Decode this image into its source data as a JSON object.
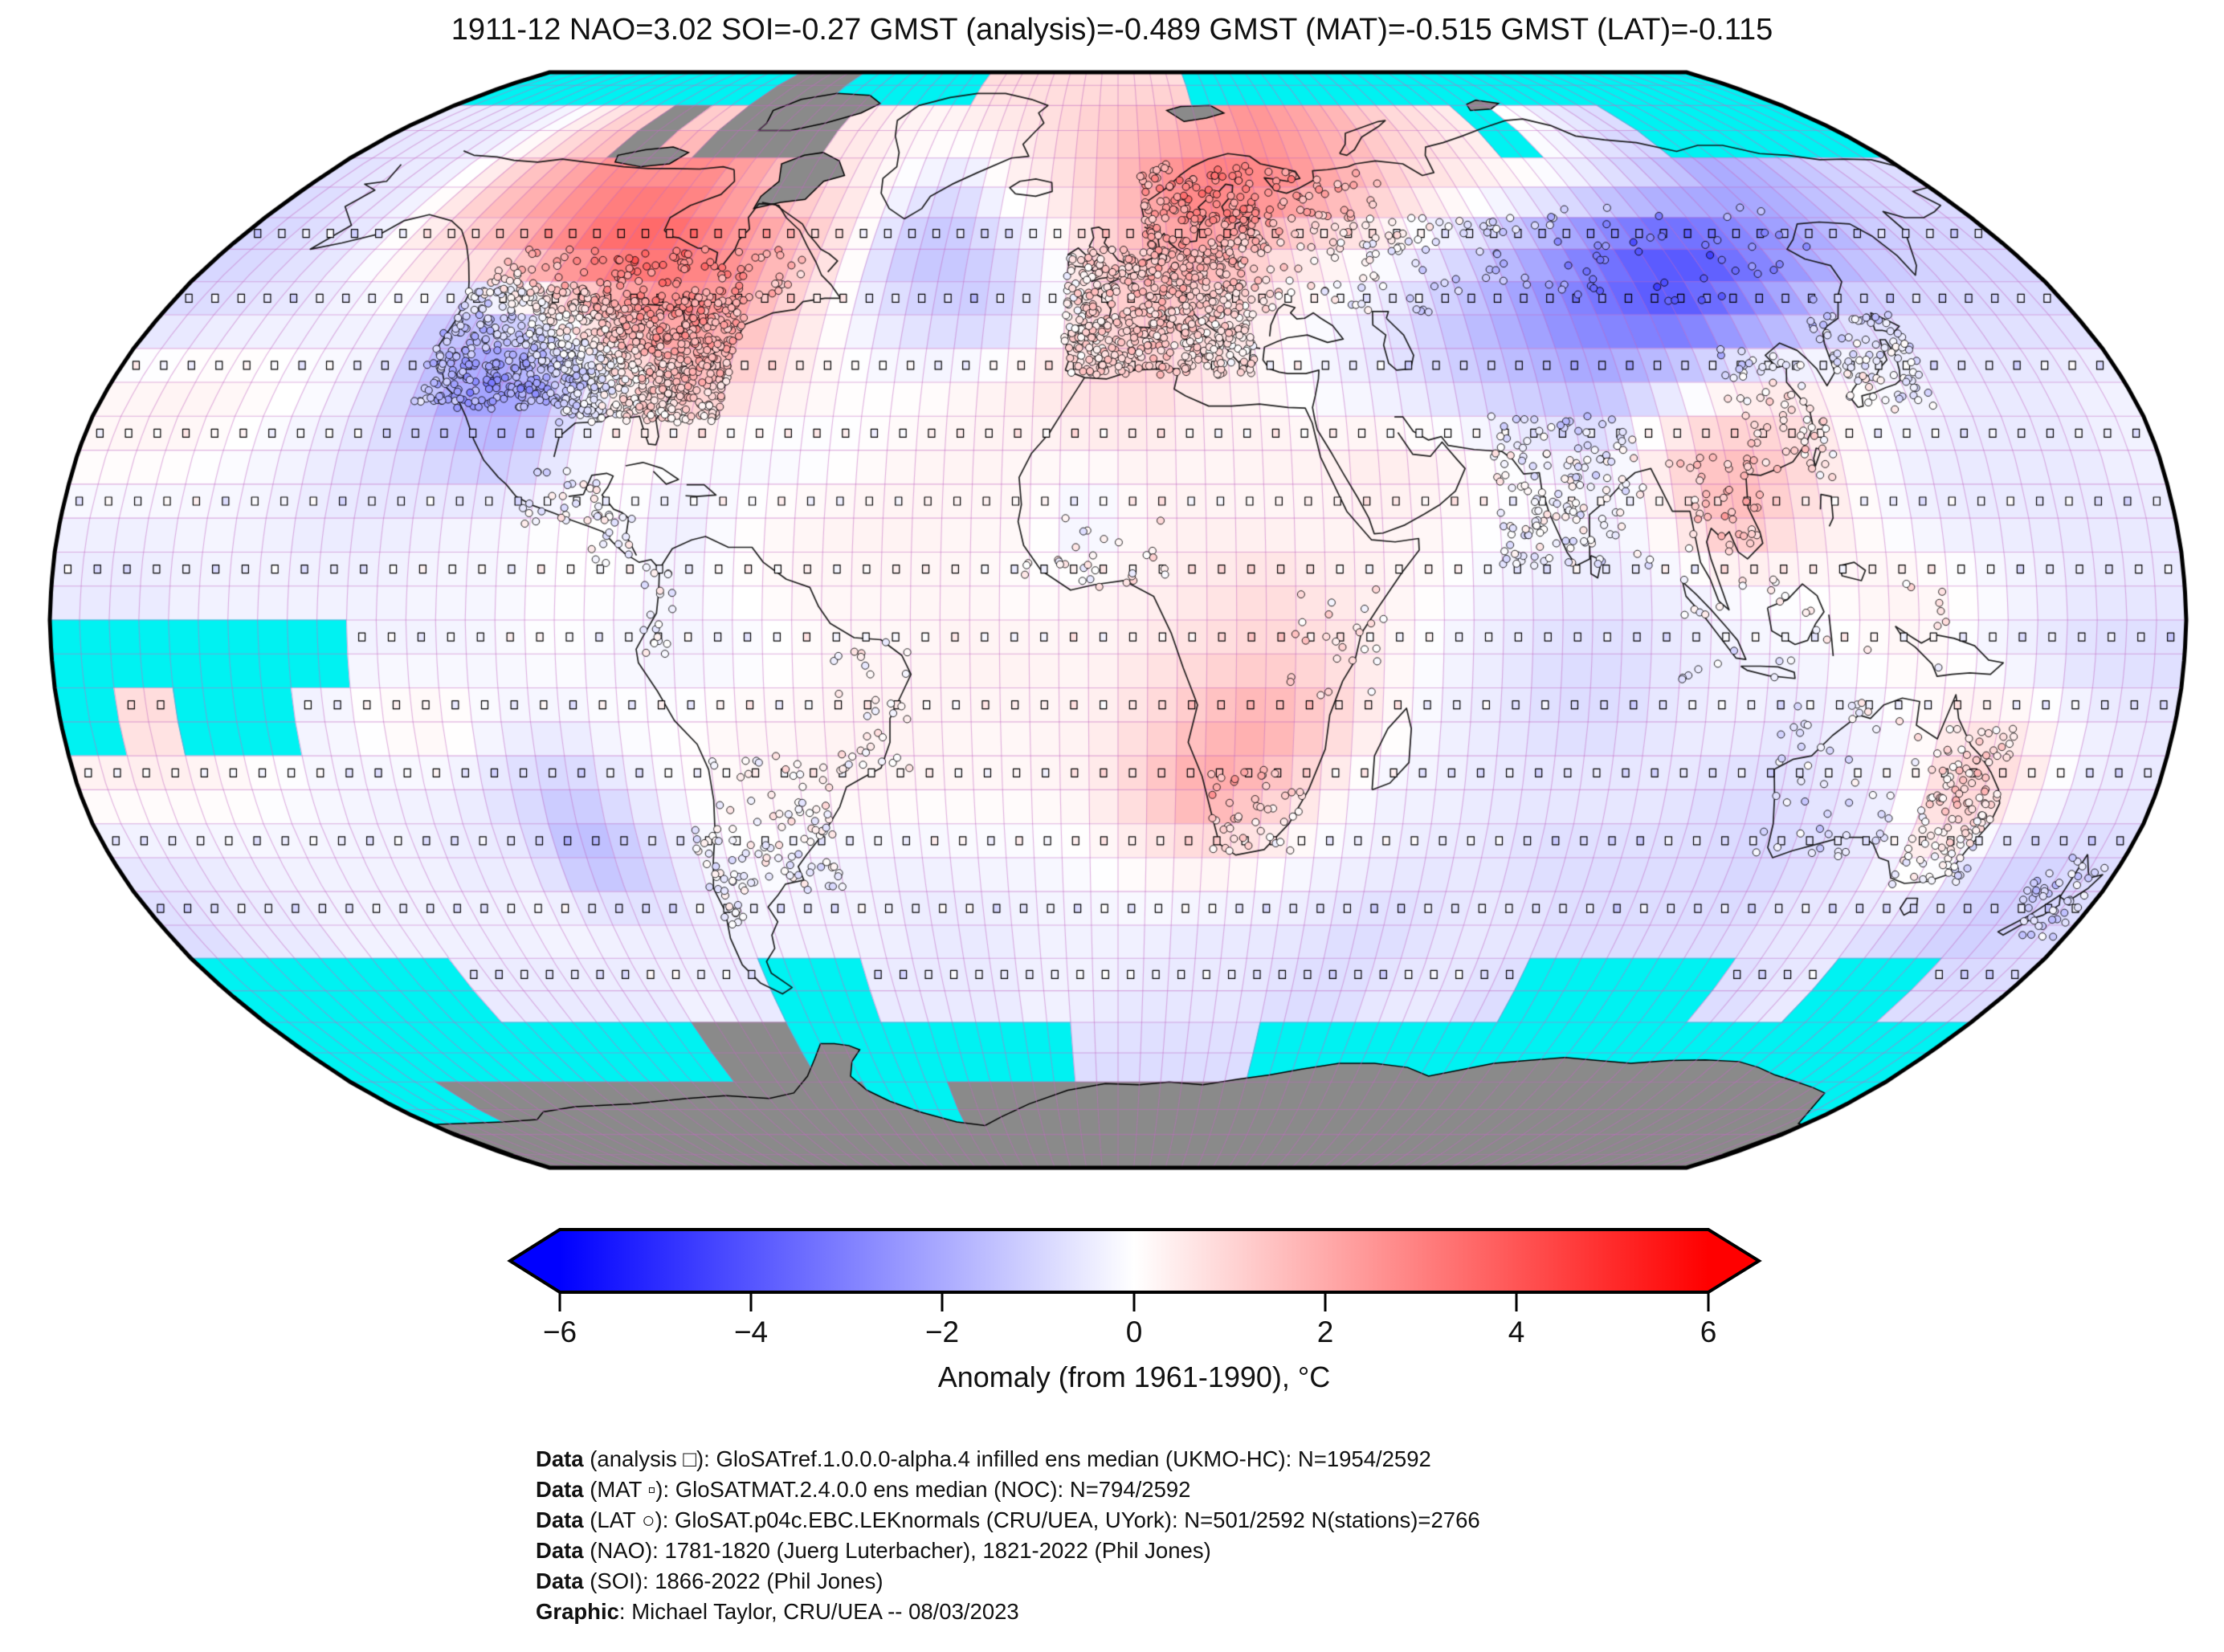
{
  "title": "1911-12 NAO=3.02 SOI=-0.27 GMST (analysis)=-0.489 GMST (MAT)=-0.515 GMST (LAT)=-0.115",
  "colorbar": {
    "label": "Anomaly (from 1961-1990), °C",
    "ticks": [
      "−6",
      "−4",
      "−2",
      "0",
      "2",
      "4",
      "6"
    ],
    "min": -6,
    "max": 6,
    "colors": {
      "neg": "#0000ff",
      "mid": "#ffffff",
      "pos": "#ff0000",
      "nodata_ocean": "#00f2f2",
      "nodata_land": "#8a8a8a",
      "gridline": "#c86ec8"
    }
  },
  "credits": [
    {
      "prefix": "Data",
      "rest": " (analysis □): GloSATref.1.0.0.0-alpha.4 infilled ens median (UKMO-HC): N=1954/2592"
    },
    {
      "prefix": "Data",
      "rest": " (MAT ▫): GloSATMAT.2.4.0.0 ens median (NOC): N=794/2592"
    },
    {
      "prefix": "Data",
      "rest": " (LAT ○): GloSAT.p04c.EBC.LEKnormals (CRU/UEA, UYork): N=501/2592 N(stations)=2766"
    },
    {
      "prefix": "Data",
      "rest": " (NAO): 1781-1820 (Juerg Luterbacher), 1821-2022 (Phil Jones)"
    },
    {
      "prefix": "Data",
      "rest": " (SOI): 1866-2022 (Phil Jones)"
    },
    {
      "prefix": "Graphic",
      "rest": ": Michael Taylor, CRU/UEA -- 08/03/2023"
    }
  ],
  "chart_data": {
    "type": "heatmap",
    "projection": "robinson",
    "period": "1911-12",
    "indices": {
      "NAO": 3.02,
      "SOI": -0.27,
      "GMST_analysis": -0.489,
      "GMST_MAT": -0.515,
      "GMST_LAT": -0.115
    },
    "coverage": {
      "analysis": "1954/2592",
      "MAT": "794/2592",
      "LAT": "501/2592",
      "stations": 2766
    },
    "anomaly_scale_degC": [
      -6,
      6
    ],
    "grid_deg": 10,
    "lat_start": 90,
    "lon_start": -180,
    "nodata_codes": {
      "C": "cyan no-data / sea-ice ocean cell",
      "G": "grey no-data land / ice sheet"
    },
    "anomaly_grid_degC": [
      [
        "C",
        "C",
        "C",
        "C",
        "C",
        "C",
        "C",
        "C",
        "G",
        "G",
        "C",
        "C",
        "C",
        "C",
        0.8,
        0.8,
        0.8,
        0.8,
        0.8,
        0.8,
        "C",
        "C",
        "C",
        "C",
        "C",
        "C",
        "C",
        "C",
        "C",
        "C",
        "C",
        "C",
        "C",
        "C",
        "C",
        "C"
      ],
      [
        -0.5,
        -0.5,
        -0.5,
        -0.2,
        0.5,
        1.2,
        "G",
        1.2,
        "G",
        "G",
        "G",
        0.5,
        0.3,
        0.2,
        0.3,
        0.5,
        0.8,
        1.2,
        1.5,
        1.8,
        2.2,
        2.5,
        2.2,
        1.8,
        1.2,
        0.8,
        0.5,
        "C",
        0,
        -0.5,
        -0.8,
        "C",
        "C",
        "C",
        "C",
        "C"
      ],
      [
        -0.8,
        -0.5,
        -0.5,
        0.3,
        1.5,
        2.2,
        2.8,
        3,
        2.8,
        2.2,
        1.5,
        0.8,
        0.3,
        -0.3,
        -0.8,
        0.2,
        0.5,
        1,
        2,
        3,
        3.2,
        2.8,
        2.2,
        1.5,
        0.8,
        0.5,
        0.2,
        0,
        -0.5,
        -1,
        -1.5,
        -2,
        -1.8,
        -1.4,
        -1,
        -0.8
      ],
      [
        -1,
        -0.8,
        -0.5,
        0.2,
        0.8,
        1.5,
        2.5,
        3.5,
        3.8,
        3.2,
        2.5,
        1.5,
        0.5,
        -1.2,
        -1.5,
        -1,
        -0.3,
        0.8,
        1.5,
        2,
        1.5,
        0.8,
        0.3,
        0,
        -0.5,
        -1.2,
        -2,
        -3,
        -3.8,
        -4.2,
        -3.5,
        -2.5,
        -1.8,
        -1.2,
        -1,
        -1
      ],
      [
        -0.8,
        -0.6,
        -0.5,
        -0.4,
        -0.3,
        -1.5,
        -1,
        0.3,
        1.5,
        2.5,
        2.2,
        1.2,
        0.2,
        -0.5,
        -1,
        -1.2,
        -0.5,
        0.8,
        1.2,
        1,
        0.5,
        0,
        -0.3,
        -0.8,
        -1.5,
        -2.2,
        -3,
        -3.5,
        -4,
        -3,
        -2,
        -1,
        -0.8,
        -0.8,
        -0.8,
        -0.8
      ],
      [
        0.2,
        0.3,
        0.2,
        0,
        -0.3,
        -1.2,
        -2.5,
        -2.2,
        -0.8,
        0.8,
        1.5,
        0.8,
        0.3,
        0,
        0,
        0.2,
        0.5,
        0.8,
        1,
        0.5,
        0.2,
        -0.2,
        -0.5,
        -0.8,
        -1.2,
        -1.5,
        -1.8,
        -1.2,
        -0.3,
        0.3,
        0.3,
        0,
        -0.3,
        -0.5,
        -0.5,
        -0.3
      ],
      [
        0.2,
        0.2,
        0,
        -0.2,
        -0.5,
        -0.8,
        -1.2,
        -1.5,
        -0.5,
        0.2,
        0,
        -0.2,
        -0.2,
        0,
        0.2,
        0.3,
        0.2,
        0.3,
        0.3,
        0.2,
        0.3,
        0.3,
        0.5,
        0.3,
        0,
        -0.3,
        -0.5,
        0.8,
        1.5,
        1.2,
        0.3,
        -0.3,
        -0.5,
        -0.5,
        -0.5,
        -0.3
      ],
      [
        -0.3,
        -0.3,
        -0.2,
        -0.3,
        -0.5,
        -0.5,
        -0.3,
        -0.2,
        0,
        0,
        -0.5,
        0,
        0.2,
        0.3,
        0.3,
        0.2,
        0.2,
        -0.5,
        0.3,
        0.3,
        0.2,
        0.2,
        0.3,
        0.2,
        0,
        0,
        -0.3,
        0.5,
        1.8,
        0.8,
        0.2,
        -0.3,
        -0.5,
        -0.5,
        -0.5,
        -0.5
      ],
      [
        -0.5,
        -0.5,
        -0.3,
        -0.3,
        -0.3,
        -0.3,
        -0.2,
        -0.2,
        0,
        0,
        -0.2,
        0,
        0.2,
        0.2,
        0.2,
        0.2,
        0,
        0.2,
        0.3,
        0.5,
        0.8,
        0.5,
        0.3,
        0,
        -0.3,
        -0.5,
        -0.5,
        -0.3,
        0,
        0,
        0.2,
        0.3,
        0,
        -0.3,
        -0.5,
        -0.5
      ],
      [
        "C",
        "C",
        "C",
        "C",
        "C",
        -0.3,
        -0.3,
        -0.2,
        0,
        -0.2,
        -0.3,
        -0.2,
        0,
        0.2,
        0.2,
        0.3,
        0.3,
        0.2,
        0.5,
        0.8,
        1,
        0.8,
        0.3,
        -0.2,
        -0.5,
        -0.8,
        -0.8,
        -0.5,
        -0.3,
        -0.2,
        0,
        0.2,
        -0.2,
        -0.5,
        -0.8,
        -0.8
      ],
      [
        "C",
        0.8,
        "C",
        "C",
        -0.3,
        0.2,
        0.3,
        -0.2,
        -0.3,
        0,
        0,
        0.2,
        0.2,
        0.3,
        0.3,
        0.2,
        0.2,
        0.3,
        0.8,
        1.5,
        2,
        1.2,
        0.3,
        -0.3,
        -0.5,
        -0.8,
        -0.8,
        -0.5,
        -0.3,
        -0.5,
        -0.3,
        0,
        0.5,
        0.3,
        -0.3,
        -0.5
      ],
      [
        0.3,
        0.3,
        0.2,
        0,
        -0.2,
        -0.3,
        -0.3,
        -0.8,
        -1.2,
        -0.5,
        0,
        0.2,
        0.2,
        0.3,
        0.2,
        0.2,
        0.2,
        0.3,
        1.2,
        2.2,
        1.5,
        0.5,
        -0.3,
        -0.3,
        -0.5,
        -0.5,
        -0.5,
        -0.5,
        -0.8,
        -0.8,
        -0.5,
        -0.3,
        1.2,
        0.8,
        -0.3,
        -0.5
      ],
      [
        -0.5,
        -0.5,
        -0.3,
        -0.3,
        -0.3,
        -0.3,
        -0.5,
        -0.5,
        -1.8,
        -1.2,
        -0.3,
        0,
        -0.2,
        -0.3,
        -0.3,
        -0.2,
        -0.2,
        0,
        0.3,
        0.5,
        0.3,
        -0.2,
        -0.3,
        -0.5,
        -0.5,
        -0.8,
        -0.8,
        -0.8,
        -0.8,
        -1,
        -0.8,
        -0.5,
        0.5,
        -0.8,
        -1,
        -0.8
      ],
      [
        -0.8,
        -0.5,
        -0.5,
        -0.3,
        -0.3,
        -0.3,
        -0.3,
        -0.2,
        -0.3,
        -0.5,
        -0.3,
        -0.3,
        -0.3,
        -0.3,
        -0.5,
        -0.5,
        -0.3,
        -0.3,
        -0.3,
        -0.5,
        -0.5,
        -0.5,
        -0.8,
        -0.8,
        -0.5,
        -0.5,
        -0.8,
        -0.8,
        -0.8,
        -0.8,
        -0.5,
        -0.5,
        -0.8,
        -1,
        -1.2,
        -0.8
      ],
      [
        "C",
        "C",
        "C",
        "C",
        "C",
        -0.5,
        -0.5,
        -0.5,
        -0.5,
        -0.3,
        -0.5,
        "C",
        "C",
        -0.5,
        -0.5,
        -0.5,
        -0.3,
        -0.3,
        -0.5,
        -0.5,
        -0.5,
        -0.8,
        -0.8,
        -0.5,
        -0.5,
        -0.8,
        "C",
        "C",
        "C",
        "C",
        -0.8,
        -0.5,
        "C",
        "C",
        -0.8,
        -0.8
      ],
      [
        "C",
        "C",
        "C",
        "C",
        "C",
        "C",
        "C",
        "C",
        "C",
        "G",
        "G",
        "C",
        "C",
        "C",
        "C",
        "C",
        "C",
        -0.8,
        -0.8,
        -0.8,
        -0.8,
        "C",
        "C",
        "C",
        "C",
        "C",
        "C",
        "C",
        "C",
        "C",
        "C",
        "C",
        "C",
        "C",
        "C",
        "C"
      ],
      [
        "C",
        "C",
        "G",
        "G",
        "G",
        "G",
        "G",
        "G",
        "G",
        "G",
        "G",
        "G",
        "C",
        "C",
        "G",
        "G",
        "G",
        "G",
        "G",
        "G",
        "G",
        "G",
        "G",
        "G",
        "G",
        "G",
        "G",
        "G",
        "G",
        "G",
        "G",
        "G",
        "G",
        "G",
        "C",
        "C"
      ],
      [
        "G",
        "G",
        "G",
        "G",
        "G",
        "G",
        "G",
        "G",
        "G",
        "G",
        "G",
        "G",
        "G",
        "G",
        "G",
        "G",
        "G",
        "G",
        "G",
        "G",
        "G",
        "G",
        "G",
        "G",
        "G",
        "G",
        "G",
        "G",
        "G",
        "G",
        "G",
        "G",
        "G",
        "G",
        "G",
        "G"
      ]
    ],
    "legend_markers": {
      "analysis": "□",
      "MAT": "▫",
      "LAT": "○"
    }
  }
}
